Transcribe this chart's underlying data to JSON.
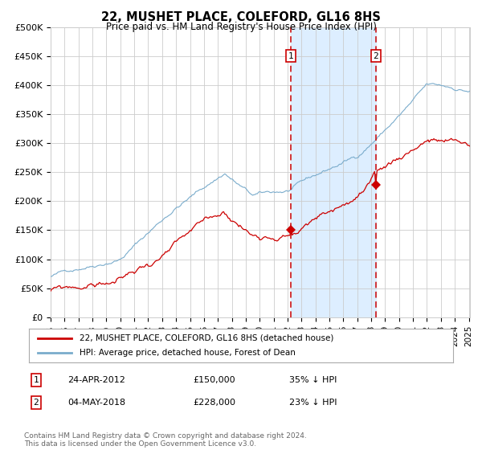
{
  "title": "22, MUSHET PLACE, COLEFORD, GL16 8HS",
  "subtitle": "Price paid vs. HM Land Registry's House Price Index (HPI)",
  "legend1": "22, MUSHET PLACE, COLEFORD, GL16 8HS (detached house)",
  "legend2": "HPI: Average price, detached house, Forest of Dean",
  "sale1_date": "24-APR-2012",
  "sale1_price": 150000,
  "sale2_date": "04-MAY-2018",
  "sale2_price": 228000,
  "sale1_pct": "35% ↓ HPI",
  "sale2_pct": "23% ↓ HPI",
  "footnote": "Contains HM Land Registry data © Crown copyright and database right 2024.\nThis data is licensed under the Open Government Licence v3.0.",
  "red_color": "#cc0000",
  "blue_color": "#7aaccc",
  "shade_color": "#ddeeff",
  "grid_color": "#cccccc",
  "bg_color": "#ffffff",
  "ylim": [
    0,
    500000
  ],
  "yticks": [
    0,
    50000,
    100000,
    150000,
    200000,
    250000,
    300000,
    350000,
    400000,
    450000,
    500000
  ]
}
